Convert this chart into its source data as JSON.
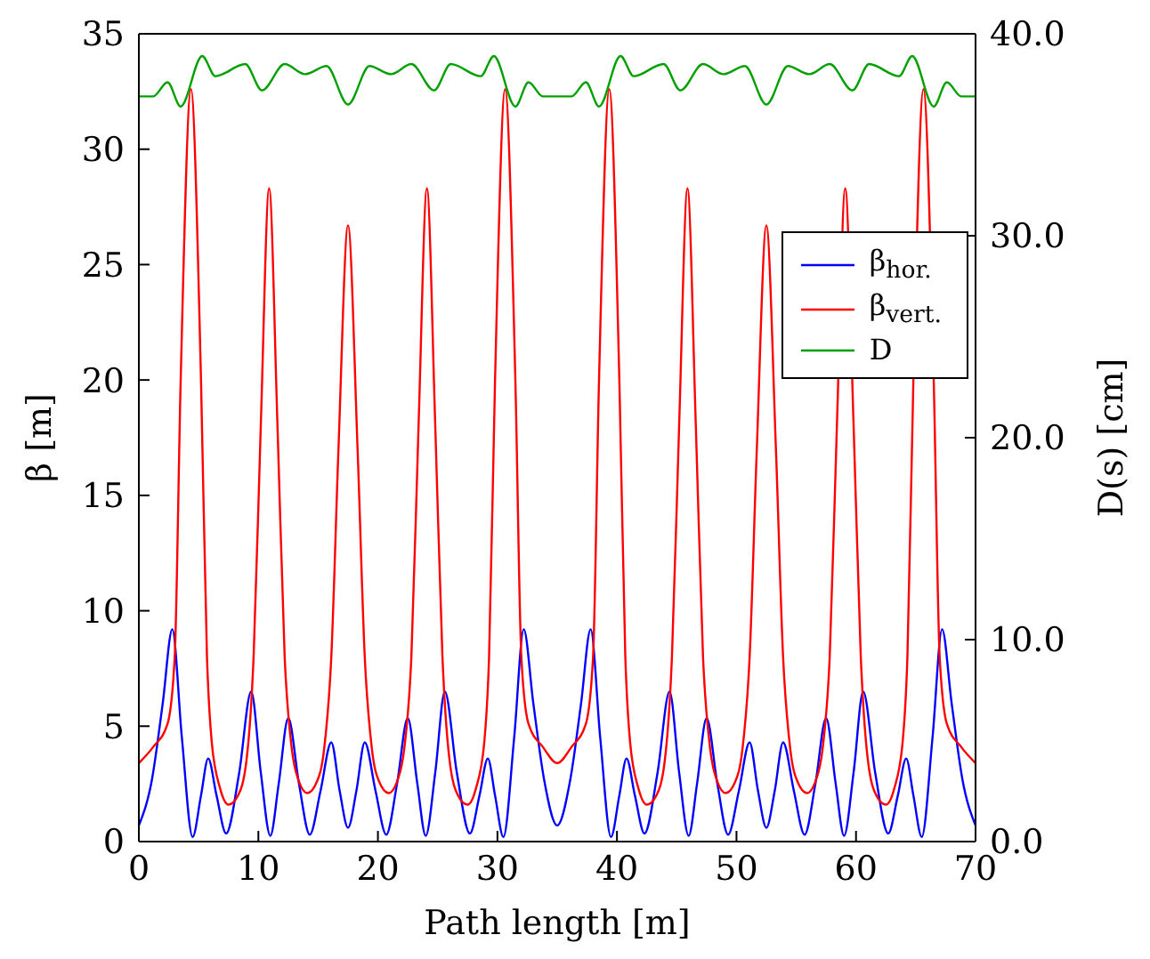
{
  "chart_data": {
    "type": "line",
    "xlabel": "Path length [m]",
    "ylabel": "β [m]",
    "y2label": "D(s) [cm]",
    "xlim": [
      0,
      70
    ],
    "xticks": [
      0,
      10,
      20,
      30,
      40,
      50,
      60,
      70
    ],
    "ylim": [
      0,
      35
    ],
    "yticks": [
      0,
      5,
      10,
      15,
      20,
      25,
      30,
      35
    ],
    "y2lim": [
      0,
      40
    ],
    "y2ticks": [
      {
        "value": 0,
        "label": "0.0"
      },
      {
        "value": 10,
        "label": "10.0"
      },
      {
        "value": 20,
        "label": "20.0"
      },
      {
        "value": 30,
        "label": "30.0"
      },
      {
        "value": 40,
        "label": "40.0"
      }
    ],
    "grid": false,
    "legend": "right",
    "marker": "none",
    "line_style": "solid",
    "series": [
      {
        "name": "β$_{hor.}$",
        "color": "#0000ff",
        "x": [
          0,
          1.1,
          2.0,
          2.8,
          3.6,
          4.5,
          5.2,
          5.8,
          6.5,
          7.3,
          8.4,
          9.4,
          10.2,
          11.0,
          11.7,
          12.5,
          13.4,
          14.3,
          15.2,
          16.1,
          16.8,
          17.5,
          18.2,
          18.9,
          19.8,
          20.7,
          21.6,
          22.5,
          23.3,
          24.0,
          24.8,
          25.6,
          26.6,
          27.7,
          28.5,
          29.2,
          29.8,
          30.5,
          31.4,
          32.2,
          33.0,
          33.9,
          35,
          36.1,
          37.0,
          37.8,
          38.6,
          39.5,
          40.2,
          40.8,
          41.5,
          42.3,
          43.4,
          44.4,
          45.2,
          46.0,
          46.7,
          47.5,
          48.4,
          49.3,
          50.2,
          51.1,
          51.8,
          52.5,
          53.2,
          53.9,
          54.8,
          55.7,
          56.6,
          57.5,
          58.3,
          59.0,
          59.8,
          60.6,
          61.6,
          62.7,
          63.5,
          64.2,
          64.8,
          65.5,
          66.4,
          67.2,
          68.0,
          68.9,
          70
        ],
        "values": [
          0.7,
          2.7,
          6.0,
          9.2,
          4.5,
          0.2,
          2.0,
          3.6,
          2.0,
          0.35,
          3.0,
          6.5,
          3.0,
          0.25,
          2.5,
          5.35,
          2.5,
          0.3,
          2.2,
          4.3,
          2.2,
          0.6,
          2.2,
          4.3,
          2.2,
          0.3,
          2.5,
          5.35,
          2.5,
          0.25,
          3.0,
          6.5,
          3.0,
          0.35,
          2.0,
          3.6,
          2.0,
          0.2,
          4.5,
          9.2,
          6.0,
          2.7,
          0.7,
          2.7,
          6.0,
          9.2,
          4.5,
          0.2,
          2.0,
          3.6,
          2.0,
          0.35,
          3.0,
          6.5,
          3.0,
          0.25,
          2.5,
          5.35,
          2.5,
          0.3,
          2.2,
          4.3,
          2.2,
          0.6,
          2.2,
          4.3,
          2.2,
          0.3,
          2.5,
          5.35,
          2.5,
          0.25,
          3.0,
          6.5,
          3.0,
          0.35,
          2.0,
          3.6,
          2.0,
          0.2,
          4.5,
          9.2,
          6.0,
          2.7,
          0.7
        ]
      },
      {
        "name": "β$_{vert.}$",
        "color": "#ff0000",
        "x": [
          0,
          1.2,
          2.4,
          3.0,
          3.5,
          4.36,
          5.2,
          5.7,
          6.1,
          6.8,
          7.5,
          8.3,
          9.0,
          9.6,
          10.2,
          10.9,
          11.6,
          12.2,
          12.8,
          13.4,
          14.1,
          14.9,
          15.5,
          16.1,
          16.7,
          17.5,
          18.3,
          18.9,
          19.5,
          20.1,
          20.9,
          21.6,
          22.2,
          22.8,
          23.4,
          24.1,
          24.8,
          25.4,
          26.0,
          26.7,
          27.5,
          28.2,
          28.9,
          29.3,
          29.8,
          30.64,
          31.5,
          32.0,
          32.6,
          33.8,
          35,
          36.2,
          37.4,
          38.0,
          38.5,
          39.36,
          40.2,
          40.7,
          41.1,
          41.8,
          42.5,
          43.3,
          44.0,
          44.6,
          45.2,
          45.9,
          46.6,
          47.2,
          47.8,
          48.4,
          49.1,
          49.9,
          50.5,
          51.1,
          51.7,
          52.5,
          53.3,
          53.9,
          54.5,
          55.1,
          55.9,
          56.6,
          57.2,
          57.8,
          58.4,
          59.1,
          59.8,
          60.4,
          61.0,
          61.7,
          62.5,
          63.2,
          63.9,
          64.3,
          64.8,
          65.64,
          66.5,
          67.0,
          67.6,
          68.8,
          70
        ],
        "values": [
          3.4,
          4.1,
          5.1,
          8,
          20,
          32.6,
          20,
          8,
          4.3,
          2.3,
          1.6,
          2.0,
          3.5,
          8,
          18,
          28.3,
          18,
          8,
          4.0,
          2.6,
          2.1,
          2.6,
          4,
          8,
          17,
          26.7,
          17,
          8,
          4,
          2.6,
          2.1,
          2.6,
          4.0,
          8,
          18,
          28.3,
          18,
          8,
          3.5,
          2.0,
          1.6,
          2.3,
          4.3,
          8,
          20,
          32.6,
          20,
          8,
          5.1,
          4.1,
          3.4,
          4.1,
          5.1,
          8,
          20,
          32.6,
          20,
          8,
          4.3,
          2.3,
          1.6,
          2.0,
          3.5,
          8,
          18,
          28.3,
          18,
          8,
          4.0,
          2.6,
          2.1,
          2.6,
          4,
          8,
          17,
          26.7,
          17,
          8,
          4,
          2.6,
          2.1,
          2.6,
          4.0,
          8,
          18,
          28.3,
          18,
          8,
          3.5,
          2.0,
          1.6,
          2.3,
          4.3,
          8,
          20,
          32.6,
          20,
          8,
          5.1,
          4.1,
          3.4
        ]
      },
      {
        "name": "D",
        "color": "#00a000",
        "axis": "y2",
        "x": [
          0,
          1.2,
          2.4,
          3.5,
          5.3,
          6.4,
          8.9,
          10.3,
          12.2,
          13.9,
          15.7,
          17.5,
          19.3,
          21.1,
          22.8,
          24.7,
          26.1,
          28.6,
          29.7,
          31.5,
          32.6,
          33.8,
          35,
          36.2,
          37.4,
          38.5,
          40.3,
          41.4,
          43.9,
          45.3,
          47.2,
          48.9,
          50.7,
          52.5,
          54.3,
          56.1,
          57.8,
          59.7,
          61.1,
          63.6,
          64.7,
          66.5,
          67.6,
          68.8,
          70
        ],
        "values": [
          36.9,
          36.9,
          37.6,
          36.4,
          38.9,
          37.9,
          38.5,
          37.2,
          38.5,
          38.0,
          38.4,
          36.5,
          38.4,
          38.0,
          38.5,
          37.2,
          38.5,
          37.9,
          38.9,
          36.4,
          37.6,
          36.9,
          36.9,
          36.9,
          37.6,
          36.4,
          38.9,
          37.9,
          38.5,
          37.2,
          38.5,
          38.0,
          38.4,
          36.5,
          38.4,
          38.0,
          38.5,
          37.2,
          38.5,
          37.9,
          38.9,
          36.4,
          37.6,
          36.9,
          36.9
        ]
      }
    ]
  }
}
